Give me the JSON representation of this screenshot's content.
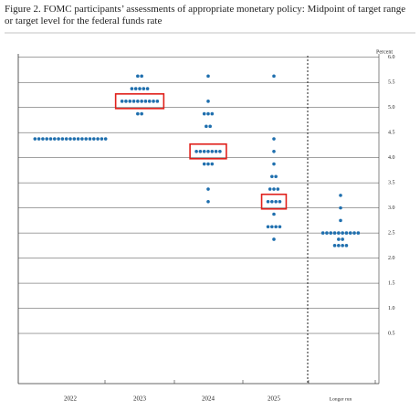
{
  "chart_data": {
    "type": "dot",
    "title": "Figure 2.  FOMC participants’ assessments of appropriate monetary policy:  Midpoint of target range or target level for the federal funds rate",
    "y_unit_label": "Percent",
    "categories": [
      "2022",
      "2023",
      "2024",
      "2025",
      "Longer run"
    ],
    "dots": [
      [
        {
          "value": 4.375,
          "count": 19
        }
      ],
      [
        {
          "value": 5.625,
          "count": 2
        },
        {
          "value": 5.375,
          "count": 5
        },
        {
          "value": 5.125,
          "count": 10
        },
        {
          "value": 4.875,
          "count": 2
        }
      ],
      [
        {
          "value": 5.625,
          "count": 1
        },
        {
          "value": 5.125,
          "count": 1
        },
        {
          "value": 4.875,
          "count": 3
        },
        {
          "value": 4.625,
          "count": 2
        },
        {
          "value": 4.125,
          "count": 7
        },
        {
          "value": 3.875,
          "count": 3
        },
        {
          "value": 3.375,
          "count": 1
        },
        {
          "value": 3.125,
          "count": 1
        }
      ],
      [
        {
          "value": 5.625,
          "count": 1
        },
        {
          "value": 4.375,
          "count": 1
        },
        {
          "value": 4.125,
          "count": 1
        },
        {
          "value": 3.875,
          "count": 1
        },
        {
          "value": 3.625,
          "count": 2
        },
        {
          "value": 3.375,
          "count": 3
        },
        {
          "value": 3.125,
          "count": 4
        },
        {
          "value": 2.875,
          "count": 1
        },
        {
          "value": 2.625,
          "count": 4
        },
        {
          "value": 2.375,
          "count": 1
        }
      ],
      [
        {
          "value": 3.25,
          "count": 1
        },
        {
          "value": 3.0,
          "count": 1
        },
        {
          "value": 2.75,
          "count": 1
        },
        {
          "value": 2.5,
          "count": 10
        },
        {
          "value": 2.375,
          "count": 2
        },
        {
          "value": 2.25,
          "count": 4
        }
      ]
    ],
    "highlighted_medians": [
      null,
      5.125,
      4.125,
      3.125,
      null
    ],
    "dot_color": "#1f6fae",
    "highlight_color": "#e0201b",
    "ylim": [
      -0.5,
      6.25
    ],
    "yticks": [
      {
        "value": 0.5,
        "label": "0.5"
      },
      {
        "value": 1,
        "label": "1.0"
      },
      {
        "value": 1.5,
        "label": "1.5"
      },
      {
        "value": 2,
        "label": "2.0"
      },
      {
        "value": 2.5,
        "label": "2.5"
      },
      {
        "value": 3,
        "label": "3.0"
      },
      {
        "value": 3.5,
        "label": "3.5"
      },
      {
        "value": 4,
        "label": "4.0"
      },
      {
        "value": 4.5,
        "label": "4.5"
      },
      {
        "value": 5,
        "label": "5.0"
      },
      {
        "value": 5.5,
        "label": "5.5"
      },
      {
        "value": 6,
        "label": "6.0"
      }
    ],
    "grid": true
  }
}
